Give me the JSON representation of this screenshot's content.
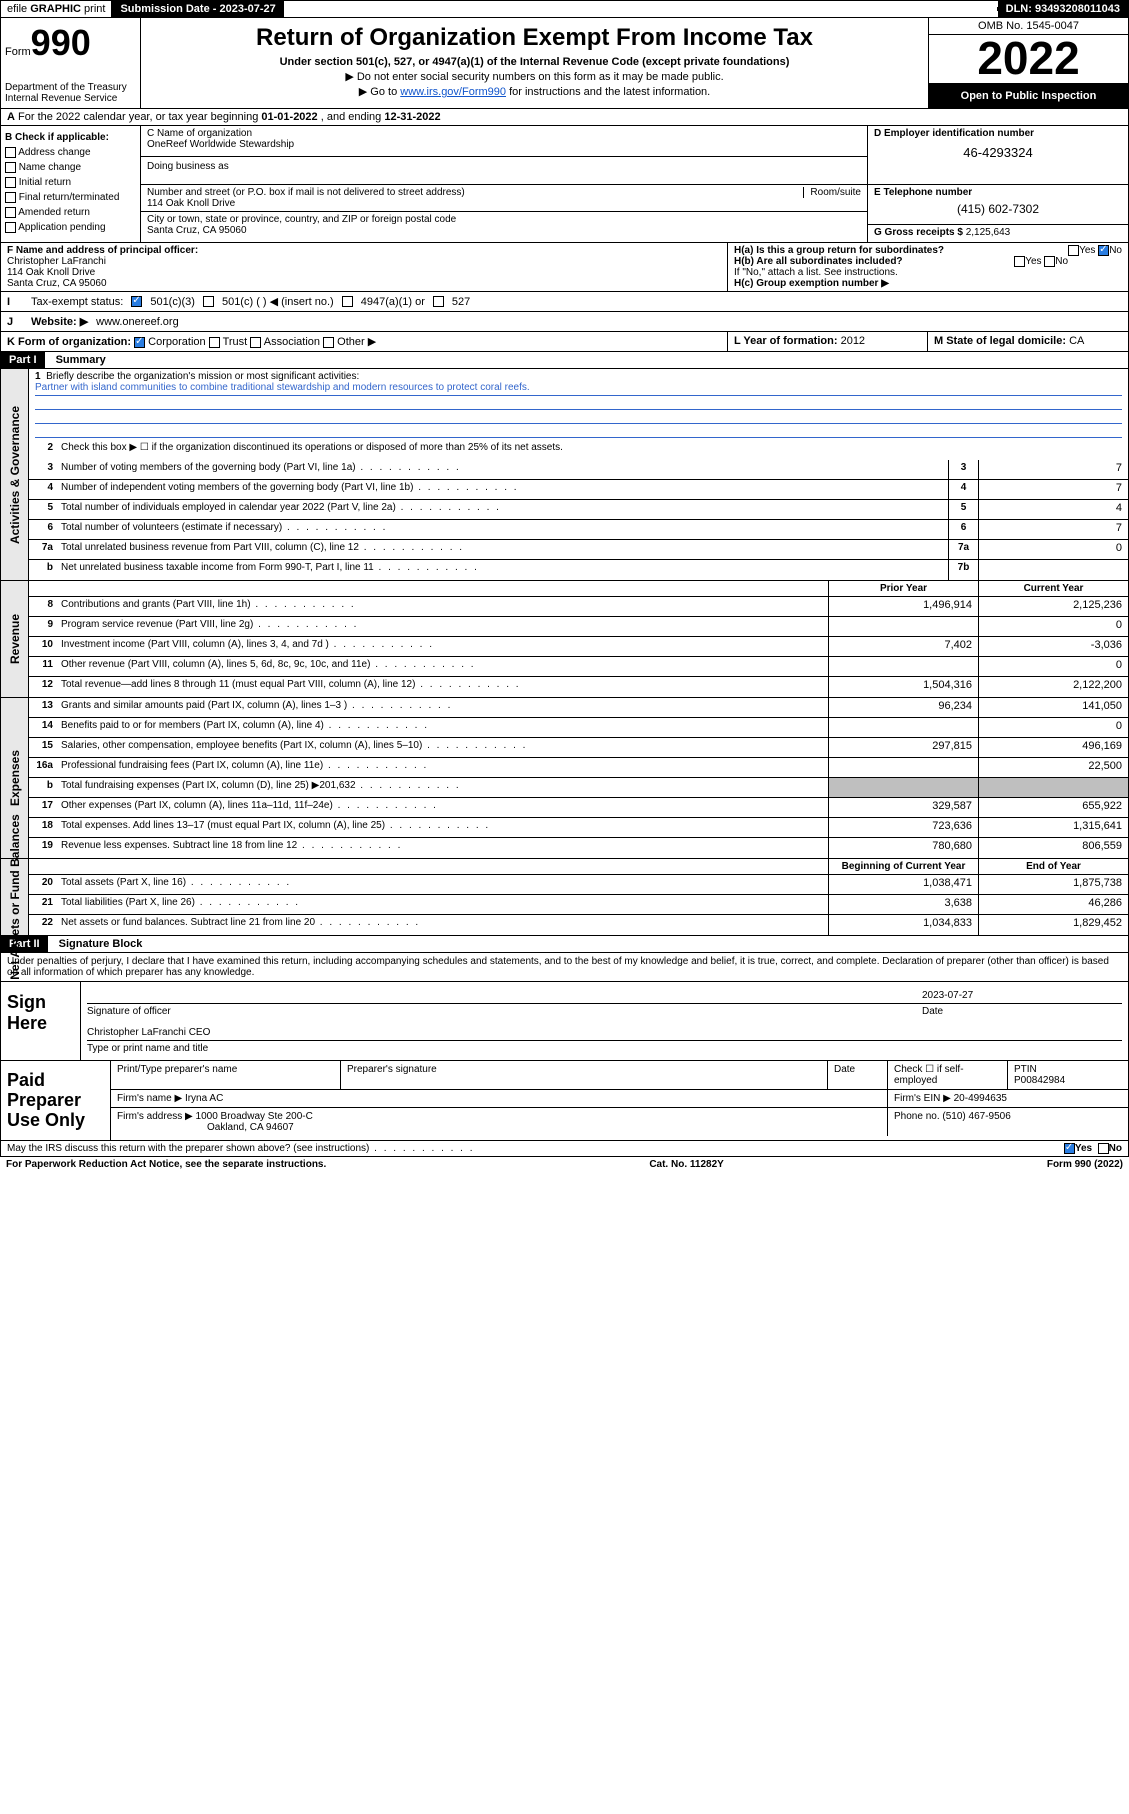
{
  "topbar": {
    "efile_prefix": "efile",
    "efile_bold": "GRAPHIC",
    "efile_suffix": "print",
    "submission_label": "Submission Date - ",
    "submission_date": "2023-07-27",
    "dln_label": "DLN: ",
    "dln": "93493208011043"
  },
  "header": {
    "form_word": "Form",
    "form_num": "990",
    "dept": "Department of the Treasury",
    "irs": "Internal Revenue Service",
    "title": "Return of Organization Exempt From Income Tax",
    "sub": "Under section 501(c), 527, or 4947(a)(1) of the Internal Revenue Code (except private foundations)",
    "note1": "▶ Do not enter social security numbers on this form as it may be made public.",
    "note2_pre": "▶ Go to ",
    "note2_link": "www.irs.gov/Form990",
    "note2_post": " for instructions and the latest information.",
    "omb": "OMB No. 1545-0047",
    "year": "2022",
    "open": "Open to Public Inspection"
  },
  "rowA": {
    "label": "A",
    "text_pre": "For the 2022 calendar year, or tax year beginning ",
    "begin": "01-01-2022",
    "mid": " , and ending ",
    "end": "12-31-2022"
  },
  "colB": {
    "heading": "B Check if applicable:",
    "items": [
      "Address change",
      "Name change",
      "Initial return",
      "Final return/terminated",
      "Amended return",
      "Application pending"
    ]
  },
  "colC": {
    "name_label": "C Name of organization",
    "name": "OneReef Worldwide Stewardship",
    "dba_label": "Doing business as",
    "dba": "",
    "addr_label": "Number and street (or P.O. box if mail is not delivered to street address)",
    "room_label": "Room/suite",
    "addr": "114 Oak Knoll Drive",
    "city_label": "City or town, state or province, country, and ZIP or foreign postal code",
    "city": "Santa Cruz, CA  95060"
  },
  "colD": {
    "label": "D Employer identification number",
    "ein": "46-4293324"
  },
  "colE": {
    "label": "E Telephone number",
    "phone": "(415) 602-7302"
  },
  "colG": {
    "label": "G Gross receipts $",
    "val": "2,125,643"
  },
  "colF": {
    "label": "F Name and address of principal officer:",
    "name": "Christopher LaFranchi",
    "addr1": "114 Oak Knoll Drive",
    "addr2": "Santa Cruz, CA  95060"
  },
  "colH": {
    "a_label": "H(a)  Is this a group return for subordinates?",
    "b_label": "H(b)  Are all subordinates included?",
    "b_note": "If \"No,\" attach a list. See instructions.",
    "c_label": "H(c)  Group exemption number ▶",
    "yes": "Yes",
    "no": "No"
  },
  "rowI": {
    "label": "I",
    "text": "Tax-exempt status:",
    "opts": [
      "501(c)(3)",
      "501(c) (  ) ◀ (insert no.)",
      "4947(a)(1) or",
      "527"
    ]
  },
  "rowJ": {
    "label": "J",
    "text": "Website: ▶",
    "val": "www.onereef.org"
  },
  "rowK": {
    "k_label": "K Form of organization:",
    "opts": [
      "Corporation",
      "Trust",
      "Association",
      "Other ▶"
    ],
    "l_label": "L Year of formation:",
    "l_val": "2012",
    "m_label": "M State of legal domicile:",
    "m_val": "CA"
  },
  "part1": {
    "hdr": "Part I",
    "title": "Summary"
  },
  "governance": {
    "tab": "Activities & Governance",
    "l1_label": "Briefly describe the organization's mission or most significant activities:",
    "l1_text": "Partner with island communities to combine traditional stewardship and modern resources to protect coral reefs.",
    "l2": "Check this box ▶ ☐  if the organization discontinued its operations or disposed of more than 25% of its net assets.",
    "rows": [
      {
        "n": "3",
        "d": "Number of voting members of the governing body (Part VI, line 1a)",
        "box": "3",
        "v": "7"
      },
      {
        "n": "4",
        "d": "Number of independent voting members of the governing body (Part VI, line 1b)",
        "box": "4",
        "v": "7"
      },
      {
        "n": "5",
        "d": "Total number of individuals employed in calendar year 2022 (Part V, line 2a)",
        "box": "5",
        "v": "4"
      },
      {
        "n": "6",
        "d": "Total number of volunteers (estimate if necessary)",
        "box": "6",
        "v": "7"
      },
      {
        "n": "7a",
        "d": "Total unrelated business revenue from Part VIII, column (C), line 12",
        "box": "7a",
        "v": "0"
      },
      {
        "n": "b",
        "d": "Net unrelated business taxable income from Form 990-T, Part I, line 11",
        "box": "7b",
        "v": ""
      }
    ]
  },
  "revenue": {
    "tab": "Revenue",
    "hdr_prior": "Prior Year",
    "hdr_curr": "Current Year",
    "rows": [
      {
        "n": "8",
        "d": "Contributions and grants (Part VIII, line 1h)",
        "p": "1,496,914",
        "c": "2,125,236"
      },
      {
        "n": "9",
        "d": "Program service revenue (Part VIII, line 2g)",
        "p": "",
        "c": "0"
      },
      {
        "n": "10",
        "d": "Investment income (Part VIII, column (A), lines 3, 4, and 7d )",
        "p": "7,402",
        "c": "-3,036"
      },
      {
        "n": "11",
        "d": "Other revenue (Part VIII, column (A), lines 5, 6d, 8c, 9c, 10c, and 11e)",
        "p": "",
        "c": "0"
      },
      {
        "n": "12",
        "d": "Total revenue—add lines 8 through 11 (must equal Part VIII, column (A), line 12)",
        "p": "1,504,316",
        "c": "2,122,200"
      }
    ]
  },
  "expenses": {
    "tab": "Expenses",
    "rows": [
      {
        "n": "13",
        "d": "Grants and similar amounts paid (Part IX, column (A), lines 1–3 )",
        "p": "96,234",
        "c": "141,050"
      },
      {
        "n": "14",
        "d": "Benefits paid to or for members (Part IX, column (A), line 4)",
        "p": "",
        "c": "0"
      },
      {
        "n": "15",
        "d": "Salaries, other compensation, employee benefits (Part IX, column (A), lines 5–10)",
        "p": "297,815",
        "c": "496,169"
      },
      {
        "n": "16a",
        "d": "Professional fundraising fees (Part IX, column (A), line 11e)",
        "p": "",
        "c": "22,500"
      },
      {
        "n": "b",
        "d": "Total fundraising expenses (Part IX, column (D), line 25) ▶201,632",
        "p": "GRAY",
        "c": "GRAY"
      },
      {
        "n": "17",
        "d": "Other expenses (Part IX, column (A), lines 11a–11d, 11f–24e)",
        "p": "329,587",
        "c": "655,922"
      },
      {
        "n": "18",
        "d": "Total expenses. Add lines 13–17 (must equal Part IX, column (A), line 25)",
        "p": "723,636",
        "c": "1,315,641"
      },
      {
        "n": "19",
        "d": "Revenue less expenses. Subtract line 18 from line 12",
        "p": "780,680",
        "c": "806,559"
      }
    ]
  },
  "netassets": {
    "tab": "Net Assets or Fund Balances",
    "hdr_begin": "Beginning of Current Year",
    "hdr_end": "End of Year",
    "rows": [
      {
        "n": "20",
        "d": "Total assets (Part X, line 16)",
        "p": "1,038,471",
        "c": "1,875,738"
      },
      {
        "n": "21",
        "d": "Total liabilities (Part X, line 26)",
        "p": "3,638",
        "c": "46,286"
      },
      {
        "n": "22",
        "d": "Net assets or fund balances. Subtract line 21 from line 20",
        "p": "1,034,833",
        "c": "1,829,452"
      }
    ]
  },
  "part2": {
    "hdr": "Part II",
    "title": "Signature Block",
    "declare": "Under penalties of perjury, I declare that I have examined this return, including accompanying schedules and statements, and to the best of my knowledge and belief, it is true, correct, and complete. Declaration of preparer (other than officer) is based on all information of which preparer has any knowledge."
  },
  "sign": {
    "lbl": "Sign Here",
    "sig_of_officer": "Signature of officer",
    "date_lbl": "Date",
    "date": "2023-07-27",
    "name": "Christopher LaFranchi CEO",
    "type_label": "Type or print name and title"
  },
  "prep": {
    "lbl": "Paid Preparer Use Only",
    "h1": "Print/Type preparer's name",
    "h2": "Preparer's signature",
    "h3": "Date",
    "h4_pre": "Check ☐ if self-employed",
    "h5_label": "PTIN",
    "ptin": "P00842984",
    "firm_name_lbl": "Firm's name   ▶",
    "firm_name": "Iryna AC",
    "firm_ein_lbl": "Firm's EIN ▶",
    "firm_ein": "20-4994635",
    "firm_addr_lbl": "Firm's address ▶",
    "firm_addr": "1000 Broadway Ste 200-C",
    "firm_city": "Oakland, CA  94607",
    "phone_lbl": "Phone no.",
    "phone": "(510) 467-9506"
  },
  "discuss": {
    "text": "May the IRS discuss this return with the preparer shown above? (see instructions)",
    "yes": "Yes",
    "no": "No"
  },
  "footer": {
    "left": "For Paperwork Reduction Act Notice, see the separate instructions.",
    "mid": "Cat. No. 11282Y",
    "right": "Form 990 (2022)"
  }
}
